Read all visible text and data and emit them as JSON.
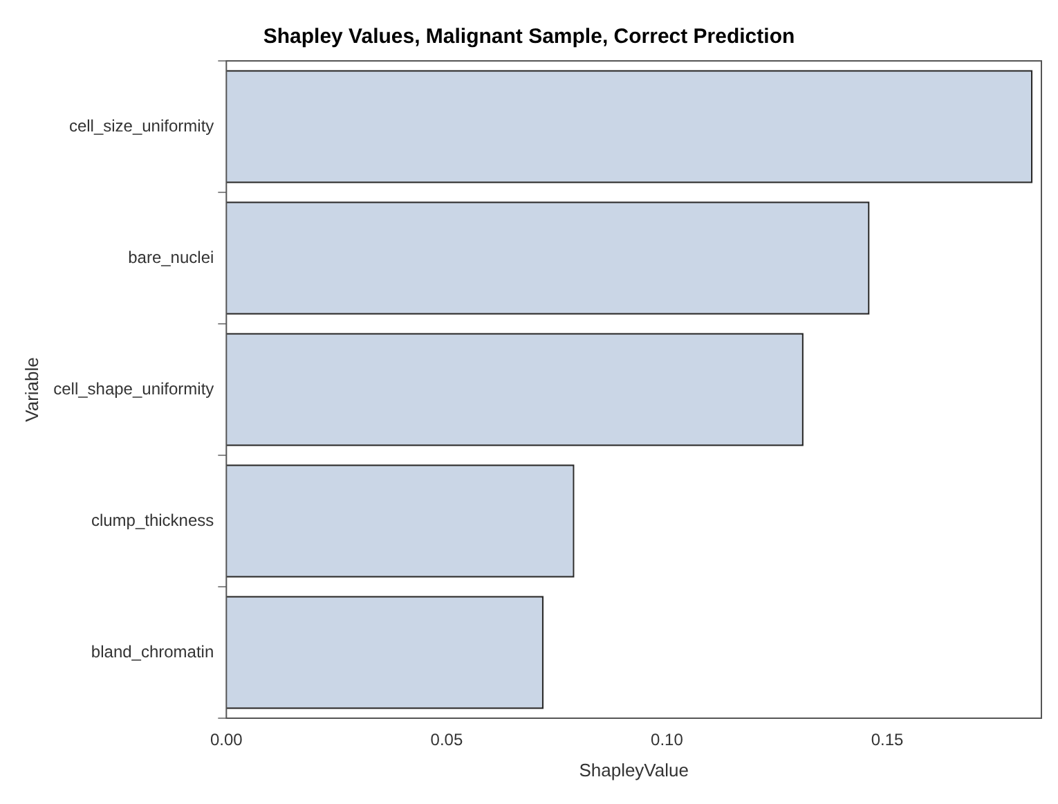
{
  "chart_data": {
    "type": "bar",
    "orientation": "horizontal",
    "title": "Shapley Values, Malignant Sample, Correct Prediction",
    "xlabel": "ShapleyValue",
    "ylabel": "Variable",
    "categories": [
      "cell_size_uniformity",
      "bare_nuclei",
      "cell_shape_uniformity",
      "clump_thickness",
      "bland_chromatin"
    ],
    "values": [
      0.183,
      0.146,
      0.131,
      0.079,
      0.072
    ],
    "color": "#cad6e6",
    "xlim": [
      0,
      0.185
    ],
    "xticks": [
      {
        "value": 0,
        "label": "0.00"
      },
      {
        "value": 0.05,
        "label": "0.05"
      },
      {
        "value": 0.1,
        "label": "0.10"
      },
      {
        "value": 0.15,
        "label": "0.15"
      }
    ],
    "grid": false,
    "legend": false
  }
}
